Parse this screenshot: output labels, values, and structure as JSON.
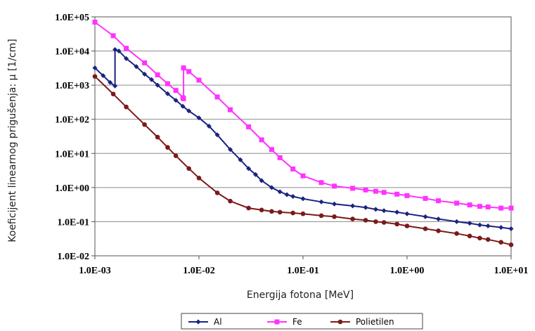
{
  "chart_data": {
    "type": "line",
    "title": "",
    "xlabel": "Energija fotona [MeV]",
    "ylabel": "Koeficijent linearnog prigušenja: μ [1/cm]",
    "xscale": "log",
    "yscale": "log",
    "xlim": [
      0.001,
      10
    ],
    "ylim": [
      0.01,
      100000
    ],
    "x_ticks": [
      "1.0E-03",
      "1.0E-02",
      "1.0E-01",
      "1.0E+00",
      "1.0E+01"
    ],
    "y_ticks": [
      "1.0E-02",
      "1.0E-01",
      "1.0E+00",
      "1.0E+01",
      "1.0E+02",
      "1.0E+03",
      "1.0E+04",
      "1.0E+05"
    ],
    "grid": "horizontal",
    "legend_position": "bottom",
    "series": [
      {
        "name": "Al",
        "color": "#1a237e",
        "marker": "diamond",
        "points": [
          [
            0.001,
            3200
          ],
          [
            0.0012,
            1900
          ],
          [
            0.0014,
            1200
          ],
          [
            0.00156,
            950
          ],
          [
            0.00156,
            11000
          ],
          [
            0.0017,
            10000
          ],
          [
            0.002,
            6000
          ],
          [
            0.0025,
            3500
          ],
          [
            0.003,
            2100
          ],
          [
            0.0035,
            1450
          ],
          [
            0.004,
            1000
          ],
          [
            0.005,
            560
          ],
          [
            0.006,
            360
          ],
          [
            0.007,
            240
          ],
          [
            0.008,
            175
          ],
          [
            0.01,
            110
          ],
          [
            0.0125,
            63
          ],
          [
            0.015,
            35
          ],
          [
            0.02,
            13
          ],
          [
            0.025,
            6.5
          ],
          [
            0.03,
            3.6
          ],
          [
            0.035,
            2.4
          ],
          [
            0.04,
            1.6
          ],
          [
            0.05,
            1.0
          ],
          [
            0.06,
            0.75
          ],
          [
            0.07,
            0.62
          ],
          [
            0.08,
            0.55
          ],
          [
            0.1,
            0.47
          ],
          [
            0.15,
            0.38
          ],
          [
            0.2,
            0.33
          ],
          [
            0.3,
            0.29
          ],
          [
            0.4,
            0.26
          ],
          [
            0.5,
            0.23
          ],
          [
            0.6,
            0.21
          ],
          [
            0.8,
            0.19
          ],
          [
            1,
            0.17
          ],
          [
            1.5,
            0.14
          ],
          [
            2,
            0.12
          ],
          [
            3,
            0.1
          ],
          [
            4,
            0.09
          ],
          [
            5,
            0.08
          ],
          [
            6,
            0.075
          ],
          [
            8,
            0.068
          ],
          [
            10,
            0.062
          ]
        ]
      },
      {
        "name": "Fe",
        "color": "#ff33ff",
        "marker": "square",
        "points": [
          [
            0.001,
            70000
          ],
          [
            0.0015,
            28000
          ],
          [
            0.002,
            12000
          ],
          [
            0.003,
            4500
          ],
          [
            0.004,
            2000
          ],
          [
            0.005,
            1100
          ],
          [
            0.006,
            700
          ],
          [
            0.007,
            430
          ],
          [
            0.00711,
            400
          ],
          [
            0.00711,
            3200
          ],
          [
            0.008,
            2500
          ],
          [
            0.01,
            1400
          ],
          [
            0.015,
            450
          ],
          [
            0.02,
            190
          ],
          [
            0.03,
            60
          ],
          [
            0.04,
            25
          ],
          [
            0.05,
            13
          ],
          [
            0.06,
            7.5
          ],
          [
            0.08,
            3.5
          ],
          [
            0.1,
            2.2
          ],
          [
            0.15,
            1.4
          ],
          [
            0.2,
            1.1
          ],
          [
            0.3,
            0.95
          ],
          [
            0.4,
            0.85
          ],
          [
            0.5,
            0.78
          ],
          [
            0.6,
            0.72
          ],
          [
            0.8,
            0.64
          ],
          [
            1,
            0.58
          ],
          [
            1.5,
            0.48
          ],
          [
            2,
            0.41
          ],
          [
            3,
            0.35
          ],
          [
            4,
            0.31
          ],
          [
            5,
            0.28
          ],
          [
            6,
            0.27
          ],
          [
            8,
            0.25
          ],
          [
            10,
            0.25
          ]
        ]
      },
      {
        "name": "Polietilen",
        "color": "#7b1a1a",
        "marker": "circle",
        "points": [
          [
            0.001,
            1800
          ],
          [
            0.0015,
            550
          ],
          [
            0.002,
            230
          ],
          [
            0.003,
            70
          ],
          [
            0.004,
            30
          ],
          [
            0.005,
            15
          ],
          [
            0.006,
            8.5
          ],
          [
            0.008,
            3.6
          ],
          [
            0.01,
            1.9
          ],
          [
            0.015,
            0.7
          ],
          [
            0.02,
            0.4
          ],
          [
            0.03,
            0.25
          ],
          [
            0.04,
            0.22
          ],
          [
            0.05,
            0.2
          ],
          [
            0.06,
            0.19
          ],
          [
            0.08,
            0.18
          ],
          [
            0.1,
            0.17
          ],
          [
            0.15,
            0.15
          ],
          [
            0.2,
            0.14
          ],
          [
            0.3,
            0.12
          ],
          [
            0.4,
            0.11
          ],
          [
            0.5,
            0.1
          ],
          [
            0.6,
            0.095
          ],
          [
            0.8,
            0.085
          ],
          [
            1,
            0.075
          ],
          [
            1.5,
            0.062
          ],
          [
            2,
            0.054
          ],
          [
            3,
            0.045
          ],
          [
            4,
            0.038
          ],
          [
            5,
            0.033
          ],
          [
            6,
            0.03
          ],
          [
            8,
            0.025
          ],
          [
            10,
            0.021
          ]
        ]
      }
    ]
  }
}
